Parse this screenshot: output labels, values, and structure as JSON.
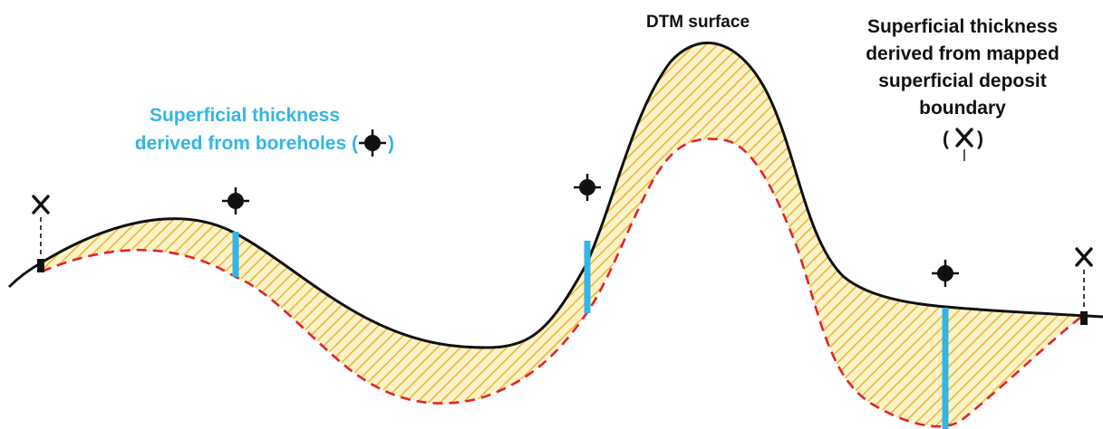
{
  "labels": {
    "dtm_surface": "DTM surface",
    "borehole_line1": "Superficial thickness",
    "borehole_line2": "derived from boreholes (",
    "borehole_close": ")",
    "mapped_line1": "Superficial thickness",
    "mapped_line2": "derived from mapped",
    "mapped_line3": "superficial deposit",
    "mapped_line4": "boundary",
    "mapped_open": "(",
    "mapped_close": ")"
  },
  "colors": {
    "dtm_line": "#111111",
    "base_line": "#e0242a",
    "deposit_fill": "#fbf2c8",
    "hatch": "#e8ba3c",
    "thickness_bar": "#34b5e5",
    "borehole_label": "#34b5e5",
    "marker": "#111111"
  },
  "icons": {
    "borehole": "borehole-crosshair-icon",
    "mapped_boundary": "x-cross-icon"
  }
}
